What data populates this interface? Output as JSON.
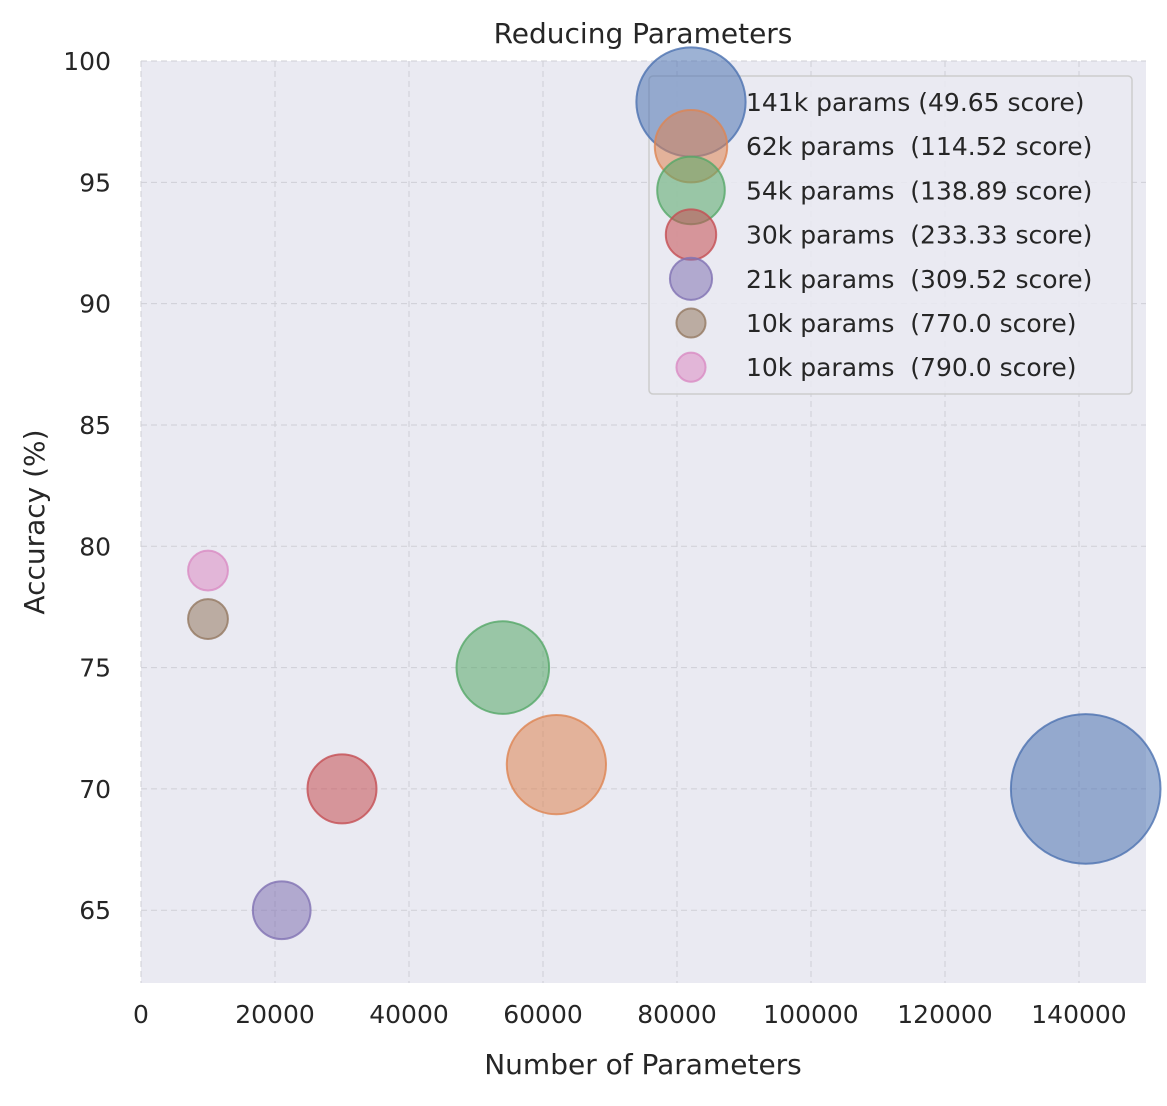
{
  "chart_data": {
    "type": "scatter",
    "title": "Reducing Parameters",
    "xlabel": "Number of Parameters",
    "ylabel": "Accuracy (%)",
    "xlim": [
      0,
      150000
    ],
    "ylim": [
      62,
      100
    ],
    "x_ticks": [
      0,
      20000,
      40000,
      60000,
      80000,
      100000,
      120000,
      140000
    ],
    "y_ticks": [
      65,
      70,
      75,
      80,
      85,
      90,
      95,
      100
    ],
    "grid": true,
    "legend_position": "top-right",
    "series": [
      {
        "name": "141k params (49.65 score)",
        "x": 141000,
        "y": 70,
        "size": 141000,
        "color": "#4c72b0"
      },
      {
        "name": "62k params  (114.52 score)",
        "x": 62000,
        "y": 71,
        "size": 62000,
        "color": "#dd8452"
      },
      {
        "name": "54k params  (138.89 score)",
        "x": 54000,
        "y": 75,
        "size": 54000,
        "color": "#55a868"
      },
      {
        "name": "30k params  (233.33 score)",
        "x": 30000,
        "y": 70,
        "size": 30000,
        "color": "#c44e52"
      },
      {
        "name": "21k params  (309.52 score)",
        "x": 21000,
        "y": 65,
        "size": 21000,
        "color": "#8172b3"
      },
      {
        "name": "10k params  (770.0 score)",
        "x": 10000,
        "y": 77,
        "size": 10000,
        "color": "#937860"
      },
      {
        "name": "10k params  (790.0 score)",
        "x": 10000,
        "y": 79,
        "size": 10000,
        "color": "#da8bc3"
      }
    ]
  }
}
